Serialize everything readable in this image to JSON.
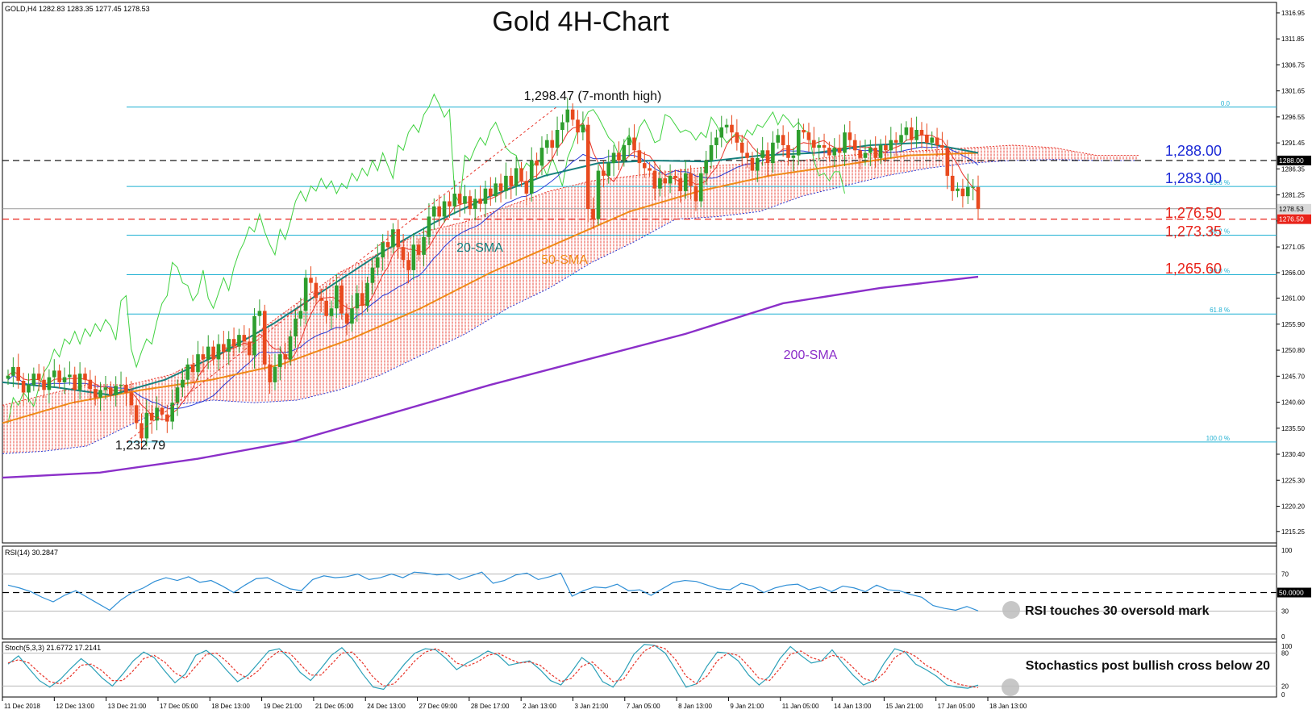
{
  "header": {
    "symbol_info": "GOLD,H4  1282.83 1283.35 1277.45 1278.53",
    "title": "Gold 4H-Chart"
  },
  "colors": {
    "bull": "#2e9e2e",
    "bear": "#e84a1e",
    "sma20": "#17807e",
    "sma50": "#f08a18",
    "sma200": "#8b2fc9",
    "tenkan": "#e8352a",
    "kijun": "#2a3bd6",
    "chikou": "#41d241",
    "cloud": "#e8352a",
    "fib": "#1fb0d2",
    "rsi": "#2f8fd6",
    "stoch_main": "#2aa0b8",
    "stoch_signal": "#e8352a"
  },
  "chart_data": [
    {
      "type": "candlestick",
      "title": "Gold 4H-Chart",
      "ylim": [
        1213.0,
        1319.0
      ],
      "y_ticks": [
        1316.95,
        1311.85,
        1306.75,
        1301.65,
        1296.55,
        1291.45,
        1286.35,
        1281.25,
        1276.15,
        1271.05,
        1266.0,
        1261.0,
        1255.9,
        1250.8,
        1245.7,
        1240.6,
        1235.5,
        1230.4,
        1225.3,
        1220.2,
        1215.25
      ],
      "x_labels": [
        "11 Dec 2018",
        "12 Dec 13:00",
        "13 Dec 21:00",
        "17 Dec 05:00",
        "18 Dec 13:00",
        "19 Dec 21:00",
        "21 Dec 05:00",
        "24 Dec 13:00",
        "27 Dec 09:00",
        "28 Dec 17:00",
        "2 Jan 13:00",
        "3 Jan 21:00",
        "7 Jan 05:00",
        "8 Jan 13:00",
        "9 Jan 21:00",
        "11 Jan 05:00",
        "14 Jan 13:00",
        "15 Jan 21:00",
        "17 Jan 05:00",
        "18 Jan 13:00"
      ],
      "last_close_label": "1278.53",
      "current_price": 1278.53,
      "candles_close": [
        1245.8,
        1247.5,
        1244.8,
        1242.5,
        1244.0,
        1246.2,
        1245.0,
        1243.0,
        1245.5,
        1246.8,
        1244.5,
        1245.5,
        1246.0,
        1243.0,
        1246.2,
        1245.0,
        1243.2,
        1241.5,
        1243.0,
        1243.5,
        1242.0,
        1243.8,
        1244.0,
        1242.5,
        1240.0,
        1236.5,
        1233.5,
        1238.5,
        1237.0,
        1239.5,
        1238.2,
        1236.8,
        1240.5,
        1243.5,
        1245.0,
        1248.0,
        1246.5,
        1250.0,
        1249.0,
        1251.5,
        1249.0,
        1252.0,
        1250.5,
        1253.0,
        1251.5,
        1253.8,
        1252.5,
        1249.8,
        1257.5,
        1258.5,
        1248.0,
        1244.5,
        1247.5,
        1250.0,
        1249.0,
        1253.5,
        1257.0,
        1258.5,
        1265.0,
        1264.0,
        1261.0,
        1260.5,
        1257.5,
        1259.0,
        1263.5,
        1258.0,
        1256.0,
        1259.0,
        1262.0,
        1259.5,
        1264.0,
        1267.0,
        1269.0,
        1272.0,
        1271.0,
        1274.5,
        1271.0,
        1268.5,
        1266.5,
        1271.5,
        1269.5,
        1273.0,
        1277.0,
        1279.0,
        1277.0,
        1280.0,
        1279.0,
        1281.5,
        1279.5,
        1281.0,
        1278.5,
        1280.5,
        1279.5,
        1282.5,
        1281.0,
        1283.5,
        1282.0,
        1285.0,
        1283.0,
        1286.5,
        1284.0,
        1281.5,
        1288.0,
        1287.0,
        1290.5,
        1292.0,
        1290.5,
        1294.0,
        1295.5,
        1298.0,
        1296.0,
        1293.5,
        1295.0,
        1278.5,
        1276.5,
        1286.0,
        1285.0,
        1287.5,
        1289.5,
        1288.0,
        1291.0,
        1292.5,
        1290.0,
        1287.5,
        1286.5,
        1286.0,
        1282.5,
        1284.5,
        1283.5,
        1285.0,
        1284.5,
        1282.0,
        1285.5,
        1283.0,
        1280.0,
        1285.5,
        1288.0,
        1291.0,
        1292.5,
        1294.5,
        1295.0,
        1293.5,
        1291.5,
        1289.5,
        1288.5,
        1286.0,
        1288.5,
        1290.0,
        1287.5,
        1291.5,
        1293.0,
        1291.0,
        1288.5,
        1289.0,
        1294.0,
        1293.5,
        1292.0,
        1290.5,
        1291.0,
        1290.5,
        1289.0,
        1290.5,
        1289.5,
        1293.5,
        1292.0,
        1290.0,
        1288.5,
        1289.5,
        1290.5,
        1288.5,
        1291.0,
        1290.0,
        1292.0,
        1291.5,
        1293.0,
        1294.5,
        1292.0,
        1294.0,
        1293.0,
        1291.5,
        1292.5,
        1291.0,
        1290.5,
        1285.0,
        1282.0,
        1282.5,
        1281.0,
        1282.8,
        1282.8,
        1278.53
      ],
      "sma20_approx": [
        1244.5,
        1243.5,
        1242.0,
        1245.0,
        1250.0,
        1256.0,
        1263.0,
        1270.0,
        1276.0,
        1281.0,
        1285.0,
        1287.5,
        1288.0,
        1287.8,
        1289.0,
        1289.5,
        1291.0,
        1291.5,
        1289.5
      ],
      "sma50_approx": [
        1236.5,
        1240.5,
        1243.0,
        1245.0,
        1248.0,
        1253.0,
        1259.0,
        1266.0,
        1272.0,
        1278.0,
        1282.0,
        1285.0,
        1287.0,
        1289.0,
        1289.5
      ],
      "sma200_approx": [
        1225.8,
        1226.8,
        1229.5,
        1233.0,
        1238.5,
        1244.0,
        1249.0,
        1254.0,
        1260.0,
        1263.0,
        1265.2
      ],
      "levels": [
        {
          "label": "1,288.00",
          "value": 1288.0,
          "style": "dashed"
        },
        {
          "label": "1,283.00",
          "value": 1283.0
        },
        {
          "label": "1,276.50",
          "value": 1276.5,
          "style": "dashed"
        },
        {
          "label": "1,273.35",
          "value": 1273.35
        },
        {
          "label": "1,265.60",
          "value": 1265.6
        }
      ],
      "fib_levels": [
        {
          "label": "0.0",
          "value": 1298.47
        },
        {
          "label": "23.6 %",
          "value": 1282.9
        },
        {
          "label": "38.2 %",
          "value": 1273.35
        },
        {
          "label": "50.0 %",
          "value": 1265.6
        },
        {
          "label": "61.8 %",
          "value": 1257.9
        },
        {
          "label": "100.0 %",
          "value": 1232.79
        }
      ],
      "annotations": {
        "high": "1,298.47 (7-month high)",
        "low": "1,232.79",
        "sma20": "20-SMA",
        "sma50": "50-SMA",
        "sma200": "200-SMA",
        "price_label_1288": "1288.00",
        "price_label_1278": "1278.53",
        "price_label_1276": "1276.50"
      }
    },
    {
      "type": "line",
      "title": "RSI(14) 30.2847",
      "ylim": [
        0,
        100
      ],
      "y_ticks": [
        "100",
        "70",
        "50.0000",
        "30",
        "0"
      ],
      "values": [
        58.0,
        55.0,
        51.0,
        45.0,
        40.0,
        47.0,
        52.0,
        45.0,
        38.0,
        31.0,
        42.0,
        50.0,
        55.0,
        62.0,
        66.0,
        63.0,
        67.0,
        61.0,
        63.0,
        57.0,
        50.0,
        58.0,
        65.0,
        66.0,
        60.0,
        54.0,
        52.0,
        64.0,
        68.0,
        66.0,
        67.0,
        70.0,
        64.0,
        66.0,
        70.0,
        66.0,
        72.0,
        71.0,
        69.0,
        70.0,
        64.0,
        68.0,
        72.0,
        60.0,
        63.0,
        69.0,
        71.0,
        64.0,
        67.0,
        71.0,
        46.0,
        52.0,
        56.0,
        55.0,
        59.0,
        52.0,
        53.0,
        47.0,
        54.0,
        61.0,
        63.0,
        62.0,
        58.0,
        54.0,
        53.0,
        60.0,
        57.0,
        50.0,
        55.0,
        58.0,
        59.0,
        53.0,
        56.0,
        51.0,
        57.0,
        55.0,
        51.0,
        58.0,
        53.0,
        52.0,
        48.0,
        45.0,
        36.0,
        33.0,
        31.0,
        35.0,
        30.28
      ],
      "annotation": "RSI touches 30 oversold mark"
    },
    {
      "type": "line",
      "title": "Stoch(5,3,3) 21.6772 17.2141",
      "ylim": [
        0,
        100
      ],
      "y_ticks": [
        "100",
        "80",
        "20",
        "0"
      ],
      "series": [
        {
          "name": "21.6772",
          "values": [
            60,
            75,
            52,
            30,
            18,
            32,
            52,
            70,
            55,
            35,
            20,
            42,
            66,
            82,
            72,
            48,
            26,
            42,
            76,
            85,
            70,
            48,
            28,
            40,
            62,
            84,
            88,
            70,
            45,
            30,
            52,
            76,
            90,
            70,
            42,
            18,
            14,
            36,
            60,
            80,
            88,
            86,
            70,
            50,
            62,
            72,
            84,
            76,
            58,
            62,
            66,
            50,
            30,
            22,
            45,
            72,
            58,
            28,
            18,
            44,
            78,
            96,
            94,
            80,
            50,
            18,
            24,
            56,
            82,
            80,
            66,
            40,
            22,
            38,
            70,
            92,
            76,
            62,
            66,
            86,
            62,
            40,
            22,
            30,
            62,
            88,
            82,
            60,
            50,
            38,
            22,
            18,
            16,
            21.68
          ]
        },
        {
          "name": "17.2141",
          "values": [
            62,
            68,
            62,
            44,
            28,
            24,
            38,
            58,
            60,
            48,
            30,
            30,
            48,
            70,
            76,
            64,
            44,
            34,
            56,
            78,
            80,
            64,
            44,
            34,
            48,
            70,
            84,
            80,
            60,
            40,
            40,
            60,
            80,
            82,
            62,
            36,
            20,
            24,
            44,
            66,
            82,
            88,
            80,
            62,
            56,
            64,
            76,
            80,
            70,
            62,
            64,
            58,
            42,
            28,
            34,
            56,
            64,
            46,
            28,
            32,
            60,
            84,
            94,
            88,
            68,
            38,
            24,
            38,
            66,
            80,
            76,
            56,
            34,
            30,
            52,
            78,
            84,
            72,
            66,
            76,
            72,
            54,
            34,
            28,
            44,
            72,
            84,
            74,
            58,
            48,
            34,
            24,
            20,
            17.21
          ]
        }
      ],
      "annotation": "Stochastics post bullish cross below 20"
    }
  ]
}
